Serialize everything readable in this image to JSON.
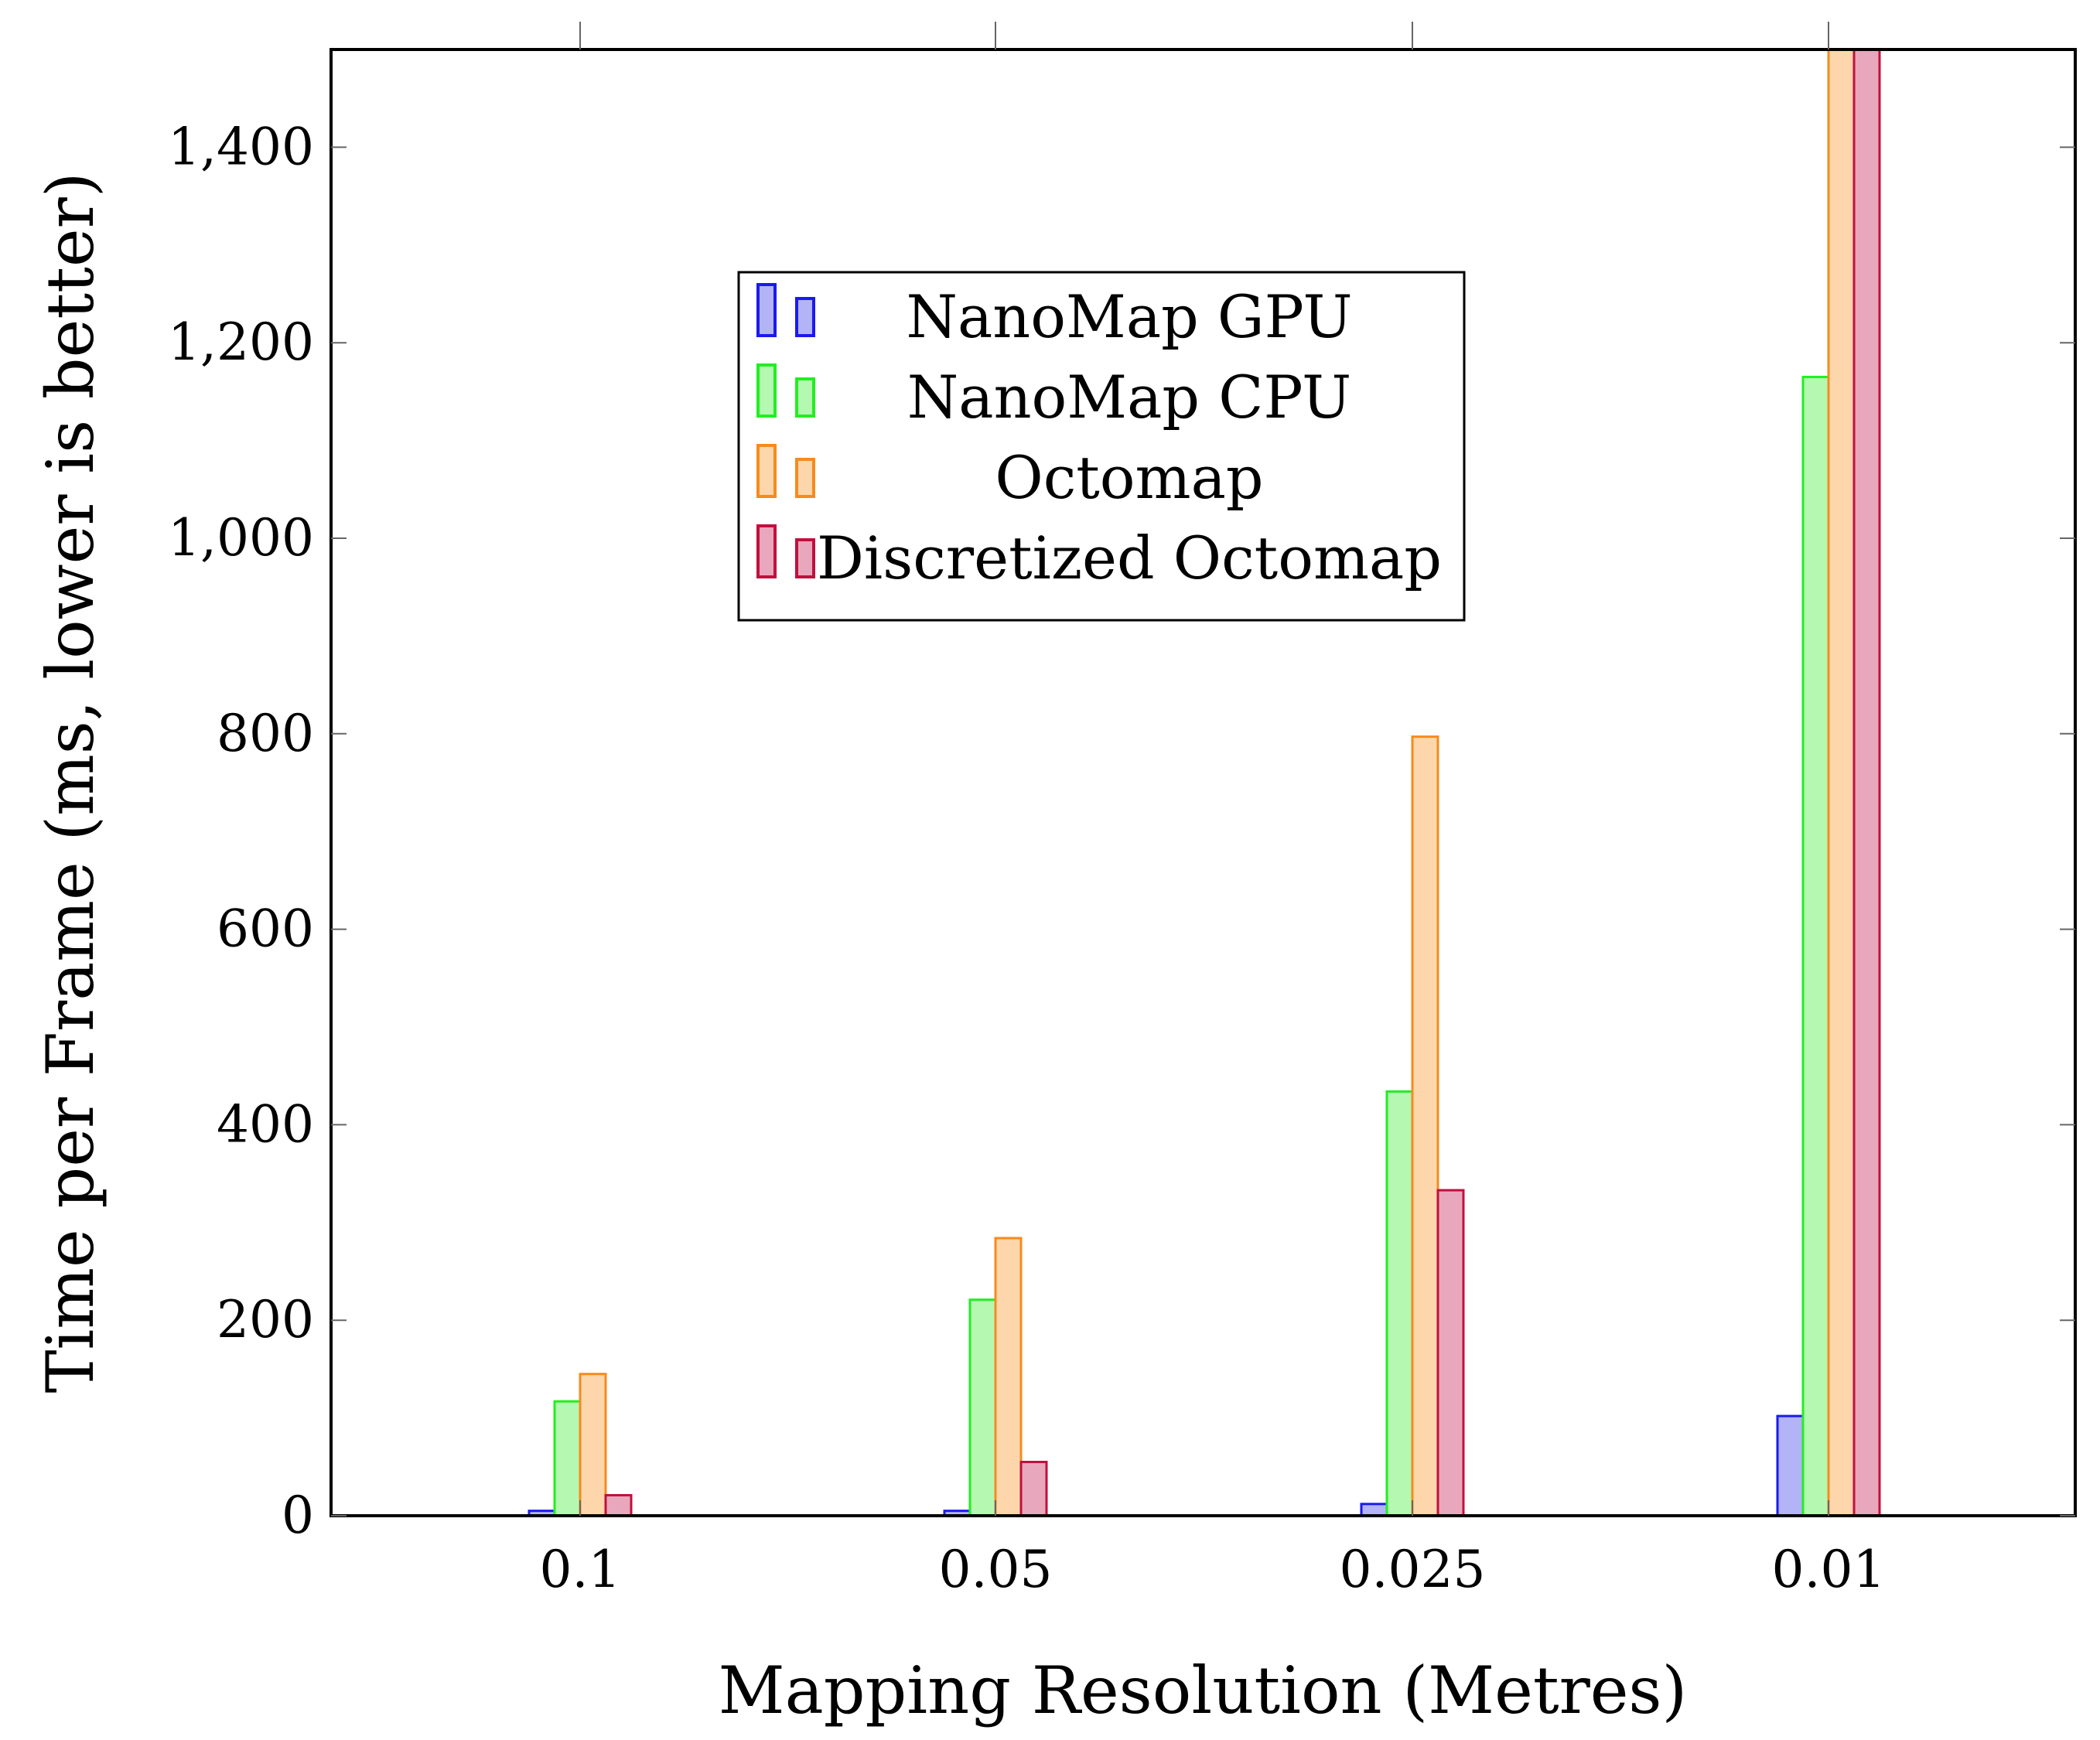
{
  "chart_data": {
    "type": "bar",
    "title": "",
    "xlabel": "Mapping Resolution (Metres)",
    "ylabel": "Time per Frame (ms, lower is better)",
    "categories": [
      "0.1",
      "0.05",
      "0.025",
      "0.01"
    ],
    "ylim": [
      0,
      1500
    ],
    "yticks": [
      0,
      200,
      400,
      600,
      800,
      1000,
      1200,
      1400
    ],
    "ytick_labels": [
      "0",
      "200",
      "400",
      "600",
      "800",
      "1,000",
      "1,200",
      "1,400"
    ],
    "grid": false,
    "legend_position": "upper-center",
    "series": [
      {
        "name": "NanoMap GPU",
        "values": [
          5,
          5,
          12,
          102
        ],
        "stroke": "#1a1aee",
        "fill": "#b3b3f7"
      },
      {
        "name": "NanoMap CPU",
        "values": [
          117,
          221,
          434,
          1165
        ],
        "stroke": "#22ee22",
        "fill": "#b5f8b1"
      },
      {
        "name": "Octomap",
        "values": [
          145,
          284,
          797,
          1500
        ],
        "stroke": "#f58b1f",
        "fill": "#fdd7ab"
      },
      {
        "name": "Discretized Octomap",
        "values": [
          21,
          55,
          333,
          1500
        ],
        "stroke": "#c0103d",
        "fill": "#e8a7bc"
      }
    ]
  }
}
